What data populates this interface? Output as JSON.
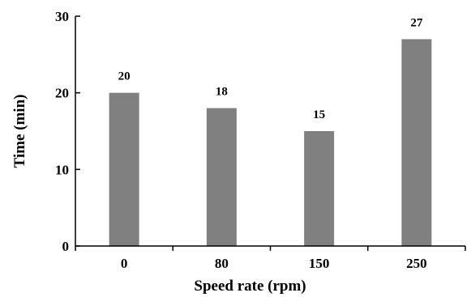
{
  "chart_data": {
    "type": "bar",
    "categories": [
      "0",
      "80",
      "150",
      "250"
    ],
    "values": [
      20,
      18,
      15,
      27
    ],
    "data_labels": [
      "20",
      "18",
      "15",
      "27"
    ],
    "title": "",
    "xlabel": "Speed rate (rpm)",
    "ylabel": "Time (min)",
    "ylim": [
      0,
      30
    ],
    "yticks": [
      0,
      10,
      20,
      30
    ],
    "ytick_labels": [
      "0",
      "10",
      "20",
      "30"
    ],
    "grid": false,
    "legend": "none",
    "bar_color": "#808080"
  }
}
